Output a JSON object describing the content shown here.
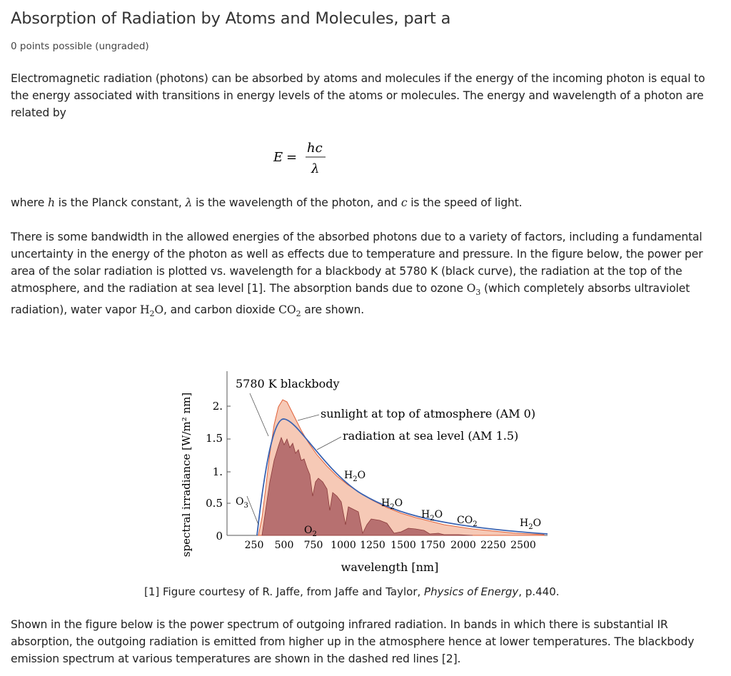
{
  "header": {
    "title": "Absorption of Radiation by Atoms and Molecules, part a",
    "points": "0 points possible (ungraded)"
  },
  "intro": {
    "line1": "Electromagnetic radiation (photons) can be absorbed by atoms and molecules if the energy of the incoming photon is equal to",
    "line2": "the energy associated with transitions in energy levels of the atoms or molecules. The energy and wavelength of a photon are",
    "line3": "related by"
  },
  "equation": {
    "lhs": "E",
    "eq": "=",
    "num": "hc",
    "den": "λ"
  },
  "where": {
    "a": "where ",
    "h": "h",
    "b": " is the Planck constant, ",
    "lam": "λ",
    "c": " is the wavelength of the photon, and ",
    "cc": "c",
    "d": " is the speed of light."
  },
  "bandwidth": {
    "line1": "There is some bandwidth in the allowed energies of the absorbed photons due to a variety of factors, including a fundamental",
    "line2": "uncertainty in the energy of the photon as well as effects due to temperature and pressure. In the figure below, the power per",
    "line3": "area of the solar radiation is plotted vs. wavelength for a blackbody at 5780 K (black curve), the radiation at the top of the",
    "line4a": "atmosphere, and the radiation at sea level [1]. The absorption bands due to ozone ",
    "o3": "O",
    "o3sub": "3",
    "line4b": " (which completely absorbs ultraviolet",
    "line5a": "radiation), water vapor ",
    "h2o_h": "H",
    "h2o_sub": "2",
    "h2o_o": "O",
    "line5b": ", and carbon dioxide ",
    "co2": "CO",
    "co2sub": "2",
    "line5c": " are shown."
  },
  "figure": {
    "ylabel": "spectral irradiance [W/m² nm]",
    "xlabel": "wavelength [nm]",
    "yticks": [
      "2.",
      "1.5",
      "1.",
      "0.5",
      "0"
    ],
    "xticks": [
      "250",
      "500",
      "750",
      "1000",
      "1250",
      "1500",
      "1750",
      "2000",
      "2250",
      "2500"
    ],
    "label_blackbody": "5780 K blackbody",
    "label_am0": "sunlight at top of atmosphere (AM 0)",
    "label_am15": "radiation at sea level (AM 1.5)",
    "bands": [
      "O3",
      "O2",
      "H2O",
      "H2O",
      "H2O",
      "CO2",
      "H2O"
    ],
    "colors": {
      "am0_fill": "#f6c9b6",
      "am15_fill": "#b86a6a",
      "blackbody": "#3a62b0",
      "am0_line": "#e0623a"
    }
  },
  "caption": {
    "a": "[1] Figure courtesy of R. Jaffe, from Jaffe and Taylor, ",
    "b": "Physics of Energy",
    "c": ", p.440."
  },
  "outgoing": {
    "line1": "Shown in the figure below is the power spectrum of outgoing infrared radiation. In bands in which there is substantial IR",
    "line2": "absorption, the outgoing radiation is emitted from higher up in the atmosphere hence at lower temperatures. The blackbody",
    "line3": "emission spectrum at various temperatures are shown in the dashed red lines [2]."
  }
}
